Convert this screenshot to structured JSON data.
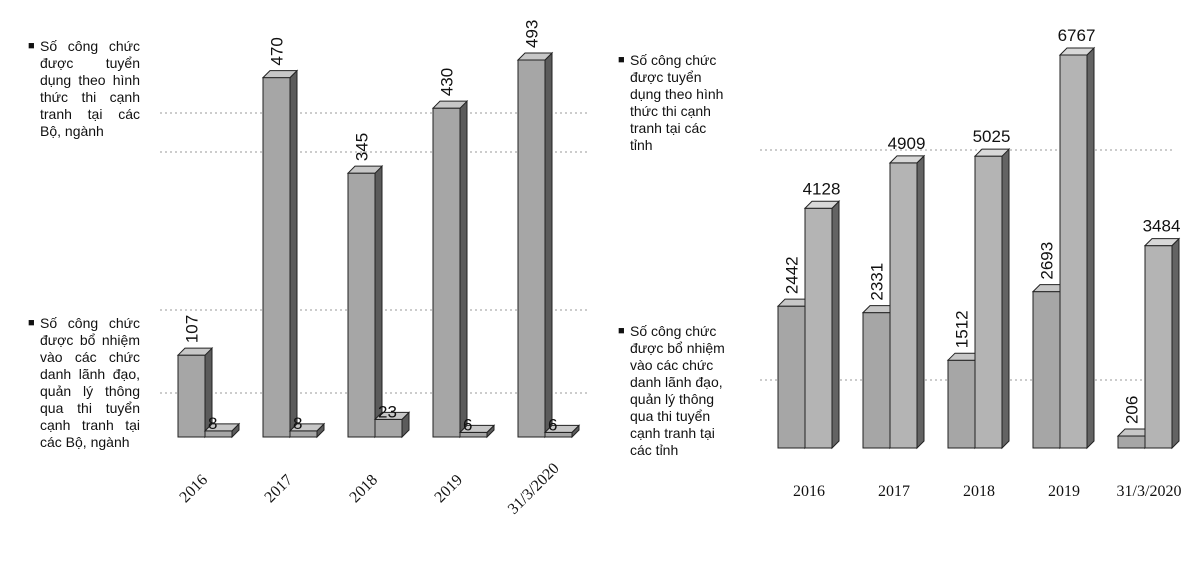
{
  "chart_data": [
    {
      "type": "bar3d",
      "categories": [
        "2016",
        "2017",
        "2018",
        "2019",
        "31/3/2020"
      ],
      "series": [
        {
          "name": "Số công chức được tuyển dụng theo hình thức thi cạnh tranh tại các Bộ, ngành",
          "color": "#a6a6a6",
          "values": [
            107,
            470,
            345,
            430,
            493
          ]
        },
        {
          "name": "Số công chức được bổ nhiệm vào các chức danh lãnh đạo, quản lý thông qua thi tuyển cạnh tranh tại các Bộ, ngành",
          "color": "#a6a6a6",
          "values": [
            8,
            8,
            23,
            6,
            6
          ]
        }
      ]
    },
    {
      "type": "bar3d",
      "categories": [
        "2016",
        "2017",
        "2018",
        "2019",
        "31/3/2020"
      ],
      "series": [
        {
          "name": "Số công chức được bổ nhiệm vào các chức danh lãnh đạo, quản lý thông qua thi tuyển cạnh tranh tại các tỉnh",
          "color": "#a6a6a6",
          "values": [
            2442,
            2331,
            1512,
            2693,
            206
          ]
        },
        {
          "name": "Số công chức được tuyển dụng theo hình thức thi cạnh tranh tại các tỉnh",
          "color": "#b4b4b4",
          "values": [
            4128,
            4909,
            5025,
            6767,
            3484
          ]
        }
      ]
    }
  ]
}
